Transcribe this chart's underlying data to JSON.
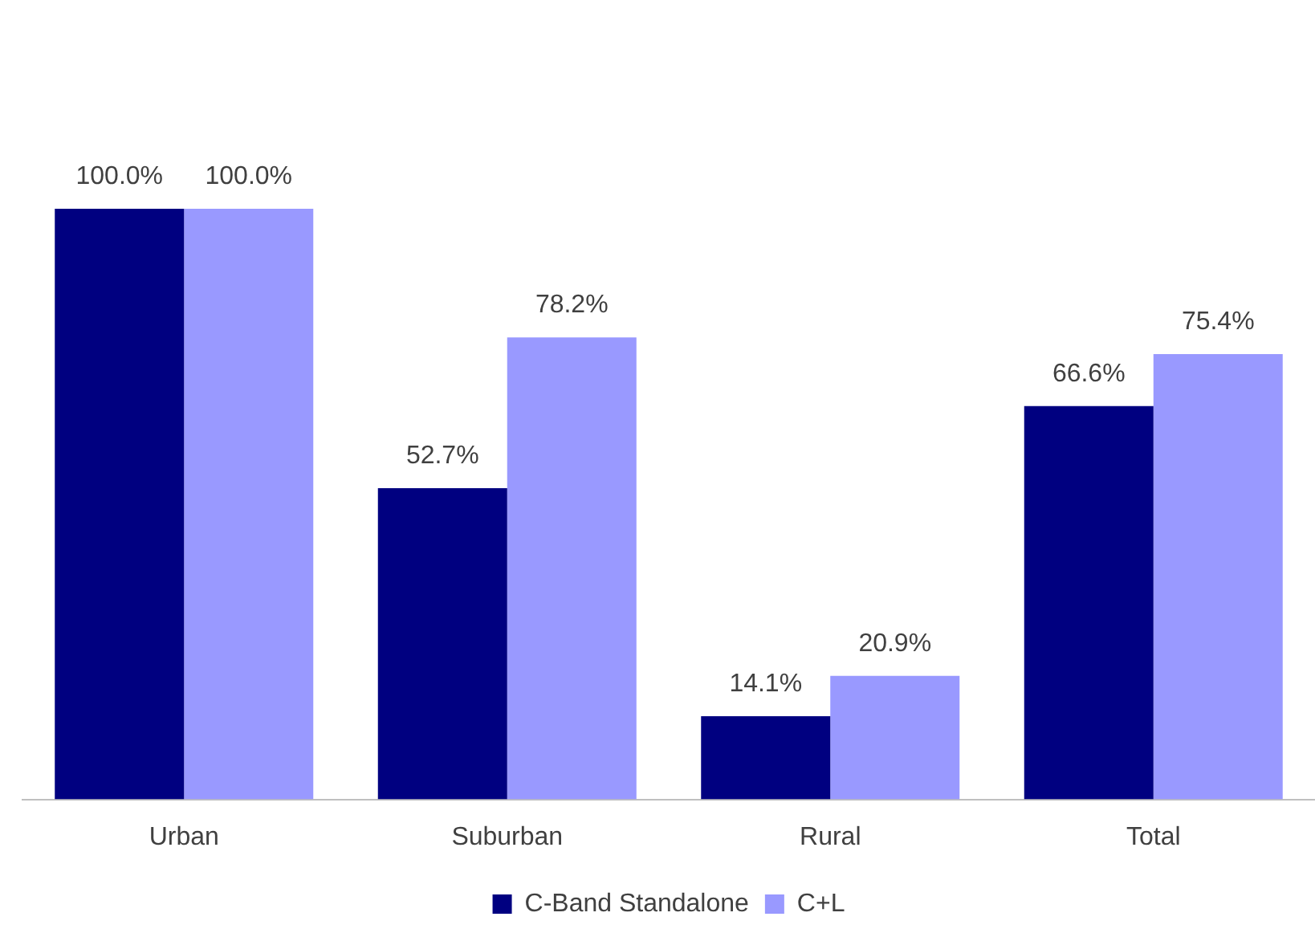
{
  "chart_data": {
    "type": "bar",
    "categories": [
      "Urban",
      "Suburban",
      "Rural",
      "Total"
    ],
    "series": [
      {
        "name": "C-Band Standalone",
        "color": "#000080",
        "values": [
          100.0,
          52.7,
          14.1,
          66.6
        ],
        "value_labels": [
          "100.0%",
          "52.7%",
          "14.1%",
          "66.6%"
        ]
      },
      {
        "name": "C+L",
        "color": "#9999ff",
        "values": [
          100.0,
          78.2,
          20.9,
          75.4
        ],
        "value_labels": [
          "100.0%",
          "78.2%",
          "20.9%",
          "75.4%"
        ]
      }
    ],
    "legend": "bottom",
    "grid": false
  }
}
